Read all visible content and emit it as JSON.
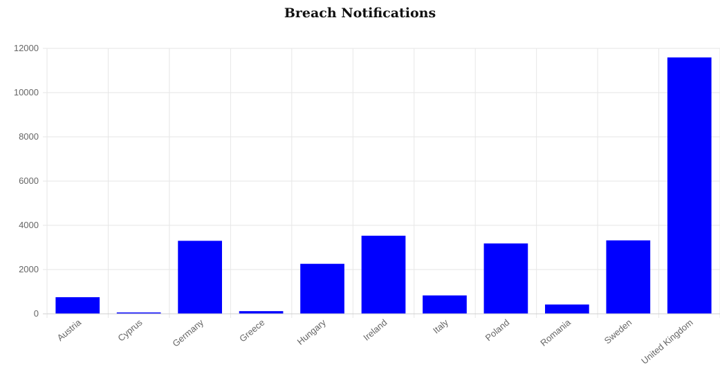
{
  "chart_data": {
    "type": "bar",
    "title": "Breach Notifications",
    "xlabel": "",
    "ylabel": "",
    "categories": [
      "Austria",
      "Cyprus",
      "Germany",
      "Greece",
      "Hungary",
      "Ireland",
      "Italy",
      "Poland",
      "Romania",
      "Sweden",
      "United Kingdom"
    ],
    "values": [
      750,
      60,
      3300,
      120,
      2260,
      3530,
      830,
      3180,
      420,
      3320,
      11590
    ],
    "ylim": [
      0,
      12000
    ],
    "yticks": [
      0,
      2000,
      4000,
      6000,
      8000,
      10000,
      12000
    ],
    "grid": true,
    "legend": "none",
    "colors": {
      "bar": "#0000ff",
      "grid": "#e6e6e6",
      "tick_text": "#666666"
    }
  }
}
